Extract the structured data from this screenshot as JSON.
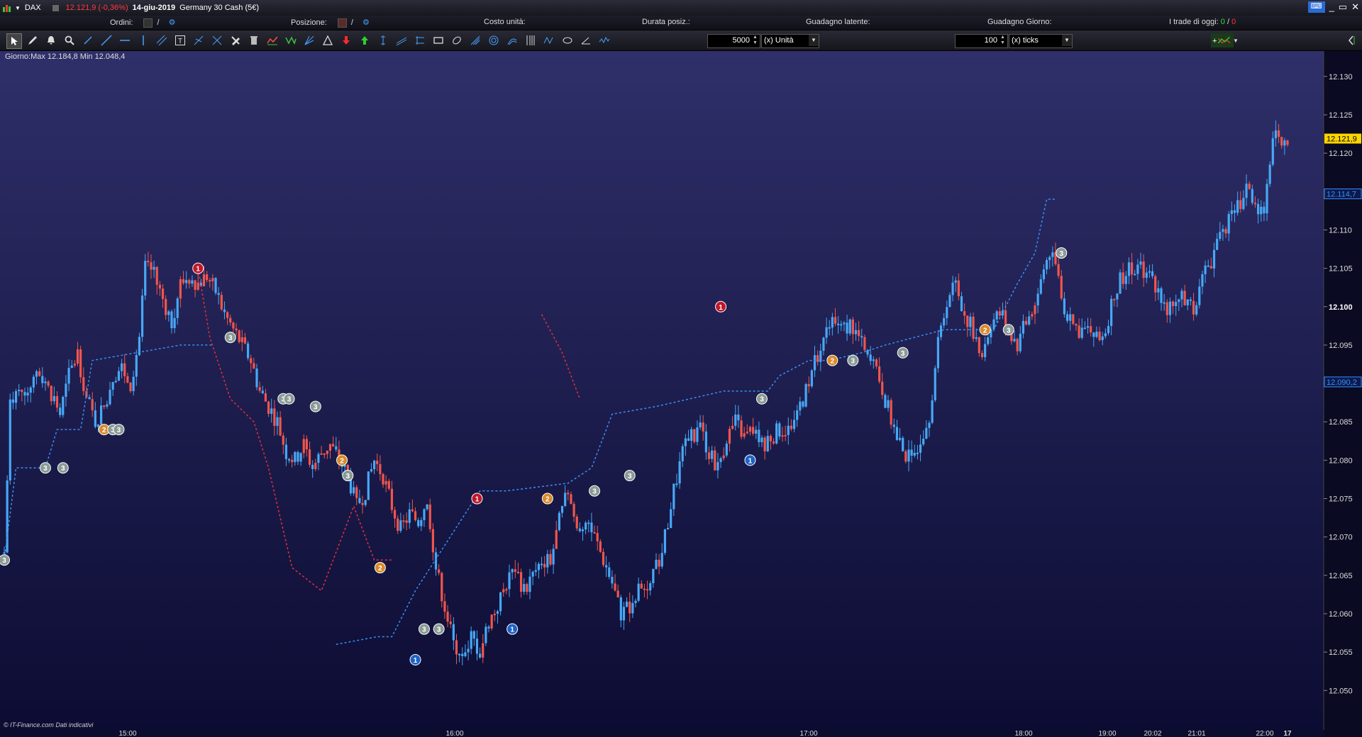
{
  "titlebar": {
    "symbol": "DAX",
    "price_change": "12.121,9 (-0,36%)",
    "date": "14-giu-2019",
    "instrument": "Germany 30 Cash (5€)"
  },
  "infobar": {
    "orders_label": "Ordini:",
    "orders_sep": "/",
    "position_label": "Posizione:",
    "position_sep": "/",
    "unit_cost_label": "Costo unità:",
    "duration_label": "Durata posiz.:",
    "latent_gain_label": "Guadagno latente:",
    "day_gain_label": "Guadagno Giorno:",
    "trades_today_label": "I trade di oggi:",
    "trades_won": "0",
    "trades_sep": "/",
    "trades_lost": "0"
  },
  "toolbar": {
    "quantity_value": "5000",
    "quantity_unit": "(x) Unità",
    "ticks_value": "100",
    "ticks_unit": "(x) ticks"
  },
  "chart_info": {
    "day_stats": "Giorno:Max 12.184,8 Min 12.048,4",
    "credit": "© IT-Finance.com  Dati indicativi"
  },
  "colors": {
    "up_candle": "#47a8f5",
    "down_candle": "#f0564c",
    "stop_line_red": "#e0303a",
    "stop_line_blue": "#3a8ff0",
    "background_top": "#2f2f6a",
    "background_bottom": "#0c0c33",
    "last_price_tag": "#ffd500"
  },
  "chart_data": {
    "type": "candlestick",
    "title": "",
    "ylim": [
      12.048,
      12.131
    ],
    "y_ticks": [
      "12.130",
      "12.125",
      "12.120",
      "12.115",
      "12.110",
      "12.105",
      "12.100",
      "12.095",
      "12.090",
      "12.085",
      "12.080",
      "12.075",
      "12.070",
      "12.065",
      "12.060",
      "12.055",
      "12.050"
    ],
    "x_ticks": [
      "15:00",
      "16:00",
      "17:00",
      "18:00",
      "19:00",
      "20:02",
      "21:01",
      "22:00",
      "17"
    ],
    "last_price": "12.121,9",
    "level_tags": [
      "12.114,7",
      "12.090,2"
    ],
    "close_path": [
      [
        0,
        12068
      ],
      [
        2,
        12087
      ],
      [
        5,
        12090
      ],
      [
        8,
        12089
      ],
      [
        11,
        12092
      ],
      [
        14,
        12090
      ],
      [
        17,
        12088
      ],
      [
        19,
        12086
      ],
      [
        22,
        12091
      ],
      [
        25,
        12094
      ],
      [
        28,
        12088
      ],
      [
        31,
        12085
      ],
      [
        34,
        12087
      ],
      [
        37,
        12091
      ],
      [
        40,
        12092
      ],
      [
        43,
        12090
      ],
      [
        46,
        12096
      ],
      [
        48,
        12105
      ],
      [
        51,
        12104
      ],
      [
        54,
        12101
      ],
      [
        57,
        12098
      ],
      [
        60,
        12103
      ],
      [
        63,
        12104
      ],
      [
        66,
        12103
      ],
      [
        69,
        12104
      ],
      [
        72,
        12102
      ],
      [
        75,
        12099
      ],
      [
        78,
        12097
      ],
      [
        81,
        12095
      ],
      [
        84,
        12093
      ],
      [
        87,
        12089
      ],
      [
        90,
        12087
      ],
      [
        93,
        12085
      ],
      [
        96,
        12081
      ],
      [
        99,
        12080
      ],
      [
        102,
        12082
      ],
      [
        105,
        12079
      ],
      [
        108,
        12081
      ],
      [
        111,
        12082
      ],
      [
        114,
        12080
      ],
      [
        117,
        12078
      ],
      [
        120,
        12074
      ],
      [
        123,
        12076
      ],
      [
        126,
        12080
      ],
      [
        129,
        12078
      ],
      [
        132,
        12074
      ],
      [
        135,
        12071
      ],
      [
        138,
        12073
      ],
      [
        141,
        12072
      ],
      [
        144,
        12075
      ],
      [
        147,
        12066
      ],
      [
        150,
        12061
      ],
      [
        153,
        12056
      ],
      [
        156,
        12055
      ],
      [
        159,
        12057
      ],
      [
        162,
        12055
      ],
      [
        165,
        12059
      ],
      [
        168,
        12061
      ],
      [
        171,
        12064
      ],
      [
        174,
        12066
      ],
      [
        177,
        12063
      ],
      [
        180,
        12065
      ],
      [
        183,
        12067
      ],
      [
        186,
        12067
      ],
      [
        189,
        12072
      ],
      [
        192,
        12076
      ],
      [
        195,
        12071
      ],
      [
        198,
        12072
      ],
      [
        201,
        12070
      ],
      [
        204,
        12067
      ],
      [
        207,
        12064
      ],
      [
        210,
        12060
      ],
      [
        213,
        12061
      ],
      [
        216,
        12063
      ],
      [
        219,
        12062
      ],
      [
        222,
        12066
      ],
      [
        225,
        12070
      ],
      [
        228,
        12076
      ],
      [
        231,
        12081
      ],
      [
        234,
        12083
      ],
      [
        237,
        12084
      ],
      [
        240,
        12081
      ],
      [
        243,
        12079
      ],
      [
        246,
        12083
      ],
      [
        249,
        12085
      ],
      [
        252,
        12083
      ],
      [
        255,
        12084
      ],
      [
        258,
        12082
      ],
      [
        261,
        12083
      ],
      [
        264,
        12084
      ],
      [
        267,
        12084
      ],
      [
        270,
        12086
      ],
      [
        273,
        12089
      ],
      [
        276,
        12093
      ],
      [
        279,
        12096
      ],
      [
        282,
        12098
      ],
      [
        285,
        12097
      ],
      [
        288,
        12098
      ],
      [
        291,
        12096
      ],
      [
        294,
        12093
      ],
      [
        297,
        12092
      ],
      [
        300,
        12088
      ],
      [
        303,
        12084
      ],
      [
        306,
        12081
      ],
      [
        309,
        12080
      ],
      [
        312,
        12083
      ],
      [
        315,
        12086
      ],
      [
        318,
        12095
      ],
      [
        321,
        12101
      ],
      [
        324,
        12103
      ],
      [
        327,
        12099
      ],
      [
        330,
        12097
      ],
      [
        333,
        12094
      ],
      [
        336,
        12098
      ],
      [
        339,
        12099
      ],
      [
        342,
        12097
      ],
      [
        345,
        12095
      ],
      [
        348,
        12098
      ],
      [
        351,
        12100
      ],
      [
        354,
        12105
      ],
      [
        357,
        12108
      ],
      [
        360,
        12101
      ],
      [
        363,
        12098
      ],
      [
        366,
        12097
      ],
      [
        369,
        12097
      ],
      [
        372,
        12096
      ],
      [
        375,
        12097
      ],
      [
        378,
        12102
      ],
      [
        381,
        12104
      ],
      [
        384,
        12105
      ],
      [
        387,
        12105
      ],
      [
        390,
        12104
      ],
      [
        393,
        12102
      ],
      [
        396,
        12100
      ],
      [
        399,
        12101
      ],
      [
        402,
        12101
      ],
      [
        405,
        12100
      ],
      [
        408,
        12104
      ],
      [
        411,
        12106
      ],
      [
        414,
        12110
      ],
      [
        417,
        12111
      ],
      [
        420,
        12113
      ],
      [
        423,
        12115
      ],
      [
        426,
        12114
      ],
      [
        429,
        12111
      ],
      [
        432,
        12123
      ],
      [
        435,
        12122
      ],
      [
        437,
        12121.9
      ]
    ],
    "stop_trail_red": [
      [
        66,
        12105
      ],
      [
        70,
        12096
      ],
      [
        77,
        12088
      ],
      [
        85,
        12085
      ],
      [
        90,
        12079
      ],
      [
        98,
        12066
      ],
      [
        108,
        12063
      ],
      [
        119,
        12074
      ],
      [
        126,
        12067
      ],
      [
        132,
        12067
      ],
      [
        183,
        12099
      ],
      [
        190,
        12094
      ],
      [
        196,
        12088
      ]
    ],
    "stop_trail_blue": [
      [
        0,
        12067
      ],
      [
        4,
        12079
      ],
      [
        14,
        12079
      ],
      [
        18,
        12084
      ],
      [
        26,
        12084
      ],
      [
        30,
        12093
      ],
      [
        45,
        12094
      ],
      [
        60,
        12095
      ],
      [
        71,
        12095
      ],
      [
        113,
        12056
      ],
      [
        127,
        12057
      ],
      [
        132,
        12057
      ],
      [
        140,
        12063
      ],
      [
        162,
        12076
      ],
      [
        171,
        12076
      ],
      [
        192,
        12077
      ],
      [
        200,
        12079
      ],
      [
        207,
        12086
      ],
      [
        222,
        12087
      ],
      [
        245,
        12089
      ],
      [
        260,
        12089
      ],
      [
        264,
        12091
      ],
      [
        274,
        12093
      ],
      [
        281,
        12093
      ],
      [
        292,
        12094
      ],
      [
        300,
        12095
      ],
      [
        320,
        12097
      ],
      [
        337,
        12097
      ],
      [
        345,
        12103
      ],
      [
        351,
        12107
      ],
      [
        355,
        12114
      ],
      [
        358,
        12114
      ]
    ],
    "markers": [
      {
        "label": "3",
        "t": 0,
        "y": 12067,
        "color": "#8a9a96"
      },
      {
        "label": "3",
        "t": 14,
        "y": 12079,
        "color": "#8a9a96"
      },
      {
        "label": "3",
        "t": 20,
        "y": 12079,
        "color": "#8a9a96"
      },
      {
        "label": "2",
        "t": 34,
        "y": 12084,
        "color": "#d98a2c"
      },
      {
        "label": "3",
        "t": 37,
        "y": 12084,
        "color": "#8a9a96"
      },
      {
        "label": "3",
        "t": 39,
        "y": 12084,
        "color": "#8a9a96"
      },
      {
        "label": "1",
        "t": 66,
        "y": 12105,
        "color": "#c0172b"
      },
      {
        "label": "3",
        "t": 77,
        "y": 12096,
        "color": "#8a9a96"
      },
      {
        "label": "3",
        "t": 95,
        "y": 12088,
        "color": "#8a9a96"
      },
      {
        "label": "3",
        "t": 97,
        "y": 12088,
        "color": "#8a9a96"
      },
      {
        "label": "3",
        "t": 106,
        "y": 12087,
        "color": "#8a9a96"
      },
      {
        "label": "2",
        "t": 115,
        "y": 12080,
        "color": "#d98a2c"
      },
      {
        "label": "3",
        "t": 117,
        "y": 12078,
        "color": "#8a9a96"
      },
      {
        "label": "2",
        "t": 128,
        "y": 12066,
        "color": "#d98a2c"
      },
      {
        "label": "1",
        "t": 140,
        "y": 12054,
        "color": "#1e62c6"
      },
      {
        "label": "3",
        "t": 143,
        "y": 12058,
        "color": "#8a9a96"
      },
      {
        "label": "3",
        "t": 148,
        "y": 12058,
        "color": "#8a9a96"
      },
      {
        "label": "1",
        "t": 161,
        "y": 12075,
        "color": "#c0172b"
      },
      {
        "label": "1",
        "t": 173,
        "y": 12058,
        "color": "#1e62c6"
      },
      {
        "label": "2",
        "t": 185,
        "y": 12075,
        "color": "#d98a2c"
      },
      {
        "label": "3",
        "t": 201,
        "y": 12076,
        "color": "#8a9a96"
      },
      {
        "label": "3",
        "t": 213,
        "y": 12078,
        "color": "#8a9a96"
      },
      {
        "label": "1",
        "t": 244,
        "y": 12100,
        "color": "#c0172b"
      },
      {
        "label": "1",
        "t": 254,
        "y": 12080,
        "color": "#1e62c6"
      },
      {
        "label": "3",
        "t": 258,
        "y": 12088,
        "color": "#8a9a96"
      },
      {
        "label": "2",
        "t": 282,
        "y": 12093,
        "color": "#d98a2c"
      },
      {
        "label": "3",
        "t": 289,
        "y": 12093,
        "color": "#8a9a96"
      },
      {
        "label": "3",
        "t": 306,
        "y": 12094,
        "color": "#8a9a96"
      },
      {
        "label": "2",
        "t": 334,
        "y": 12097,
        "color": "#d98a2c"
      },
      {
        "label": "3",
        "t": 342,
        "y": 12097,
        "color": "#8a9a96"
      },
      {
        "label": "3",
        "t": 360,
        "y": 12107,
        "color": "#8a9a96"
      }
    ]
  }
}
